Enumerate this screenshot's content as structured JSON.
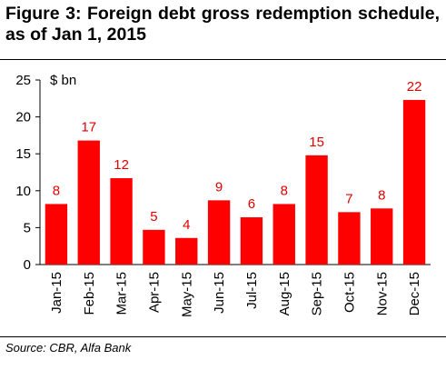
{
  "figure": {
    "title": "Figure 3: Foreign debt gross redemption schedule, as of Jan 1, 2015",
    "source": "Source: CBR, Alfa Bank"
  },
  "colors": {
    "bar": "#ff0000",
    "data_label": "#e00000",
    "axis": "#000000"
  },
  "chart_data": {
    "type": "bar",
    "categories": [
      "Jan-15",
      "Feb-15",
      "Mar-15",
      "Apr-15",
      "May-15",
      "Jun-15",
      "Jul-15",
      "Aug-15",
      "Sep-15",
      "Oct-15",
      "Nov-15",
      "Dec-15"
    ],
    "values": [
      8.2,
      16.8,
      11.7,
      4.7,
      3.6,
      8.7,
      6.4,
      8.2,
      14.8,
      7.1,
      7.6,
      22.3
    ],
    "data_labels": [
      "8",
      "17",
      "12",
      "5",
      "4",
      "9",
      "6",
      "8",
      "15",
      "7",
      "8",
      "22"
    ],
    "title": "",
    "xlabel": "",
    "ylabel": "$ bn",
    "ylim": [
      0,
      25
    ],
    "yticks": [
      0,
      5,
      10,
      15,
      20,
      25
    ],
    "grid": false,
    "legend": "none"
  }
}
